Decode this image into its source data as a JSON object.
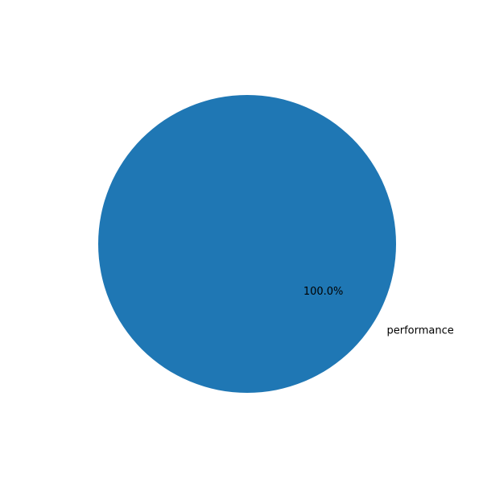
{
  "chart_data": {
    "type": "pie",
    "title": "",
    "slices": [
      {
        "label": "performance",
        "value": 100,
        "percent_label": "100.0%",
        "color": "#1f77b4"
      }
    ],
    "start_angle_deg": 0,
    "direction": "counterclockwise",
    "legend": "none"
  }
}
